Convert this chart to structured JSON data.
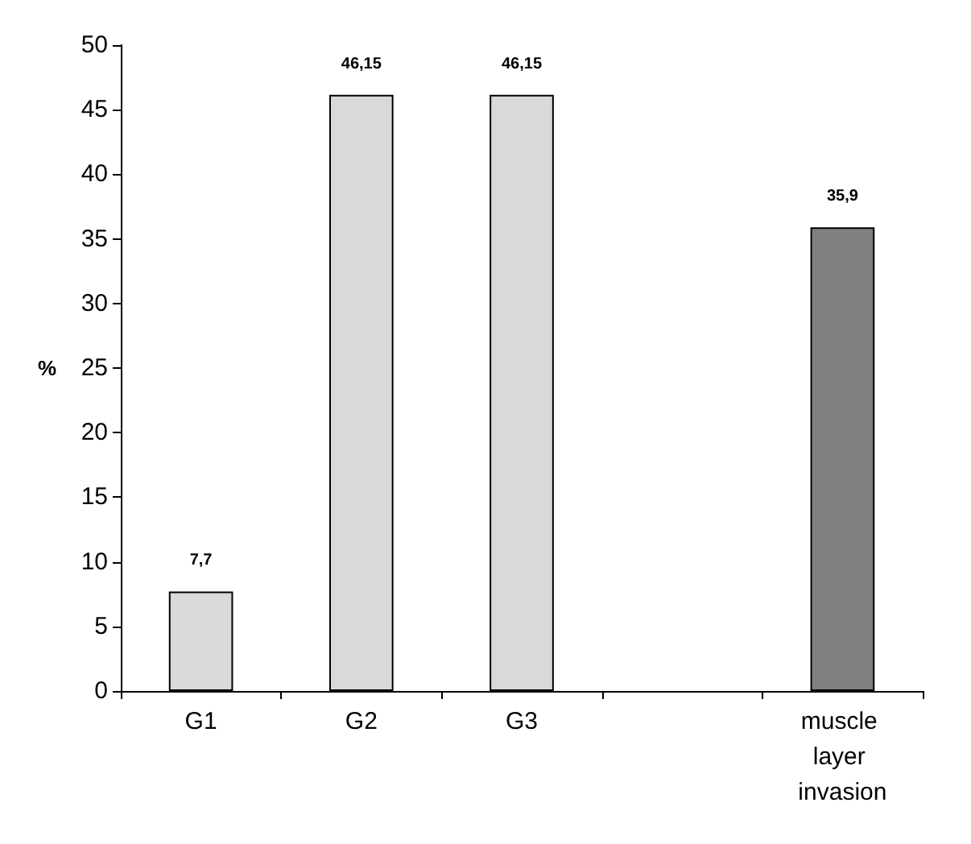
{
  "chart_data": {
    "type": "bar",
    "ylabel": "%",
    "categories": [
      "G1",
      "G2",
      "G3",
      null,
      "muscle layer invasion"
    ],
    "values": [
      7.7,
      46.15,
      46.15,
      null,
      35.9
    ],
    "colors": [
      "#d9d9d9",
      "#d9d9d9",
      "#d9d9d9",
      "#808080",
      "#808080"
    ],
    "value_labels": [
      "7,7",
      "46,15",
      "46,15",
      null,
      "35,9"
    ],
    "ylim": [
      0,
      50
    ],
    "yticks": [
      0,
      5,
      10,
      15,
      20,
      25,
      30,
      35,
      40,
      45,
      50
    ]
  }
}
